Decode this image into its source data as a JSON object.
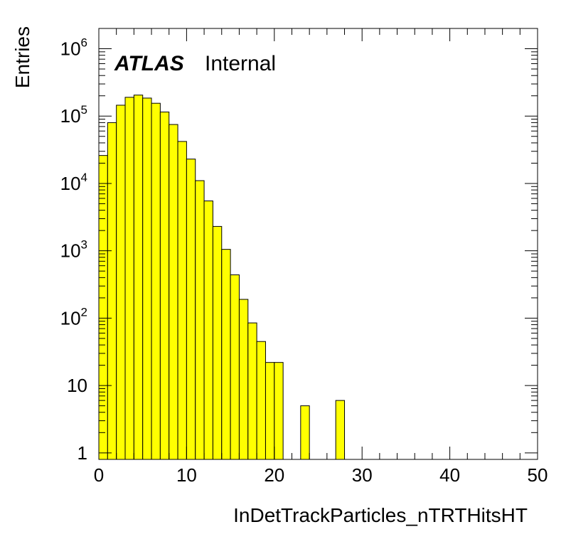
{
  "chart_data": {
    "type": "bar",
    "style": "histogram",
    "fill_color": "#ffff00",
    "edge_color": "#000000",
    "xlabel": "InDetTrackParticles_nTRTHitsHT",
    "ylabel": "Entries",
    "xlim": [
      0,
      50
    ],
    "ylim": [
      0.8,
      2000000
    ],
    "yscale": "log",
    "grid": false,
    "legend": "none",
    "bin_width": 1,
    "x_ticks": [
      "0",
      "10",
      "20",
      "30",
      "40",
      "50"
    ],
    "y_ticks": [
      {
        "value": 1,
        "mantissa": "1",
        "exp": ""
      },
      {
        "value": 10,
        "mantissa": "10",
        "exp": ""
      },
      {
        "value": 100,
        "mantissa": "10",
        "exp": "2"
      },
      {
        "value": 1000,
        "mantissa": "10",
        "exp": "3"
      },
      {
        "value": 10000,
        "mantissa": "10",
        "exp": "4"
      },
      {
        "value": 100000,
        "mantissa": "10",
        "exp": "5"
      },
      {
        "value": 1000000,
        "mantissa": "10",
        "exp": "6"
      }
    ],
    "bins": [
      {
        "x": 0,
        "value": 26000
      },
      {
        "x": 1,
        "value": 80000
      },
      {
        "x": 2,
        "value": 145000
      },
      {
        "x": 3,
        "value": 190000
      },
      {
        "x": 4,
        "value": 205000
      },
      {
        "x": 5,
        "value": 185000
      },
      {
        "x": 6,
        "value": 155000
      },
      {
        "x": 7,
        "value": 115000
      },
      {
        "x": 8,
        "value": 75000
      },
      {
        "x": 9,
        "value": 42000
      },
      {
        "x": 10,
        "value": 23000
      },
      {
        "x": 11,
        "value": 11000
      },
      {
        "x": 12,
        "value": 5500
      },
      {
        "x": 13,
        "value": 2300
      },
      {
        "x": 14,
        "value": 1050
      },
      {
        "x": 15,
        "value": 440
      },
      {
        "x": 16,
        "value": 190
      },
      {
        "x": 17,
        "value": 85
      },
      {
        "x": 18,
        "value": 45
      },
      {
        "x": 19,
        "value": 22
      },
      {
        "x": 20,
        "value": 22
      },
      {
        "x": 23,
        "value": 5
      },
      {
        "x": 27,
        "value": 6
      }
    ],
    "annotation": {
      "brand": "ATLAS",
      "status": "Internal"
    }
  }
}
